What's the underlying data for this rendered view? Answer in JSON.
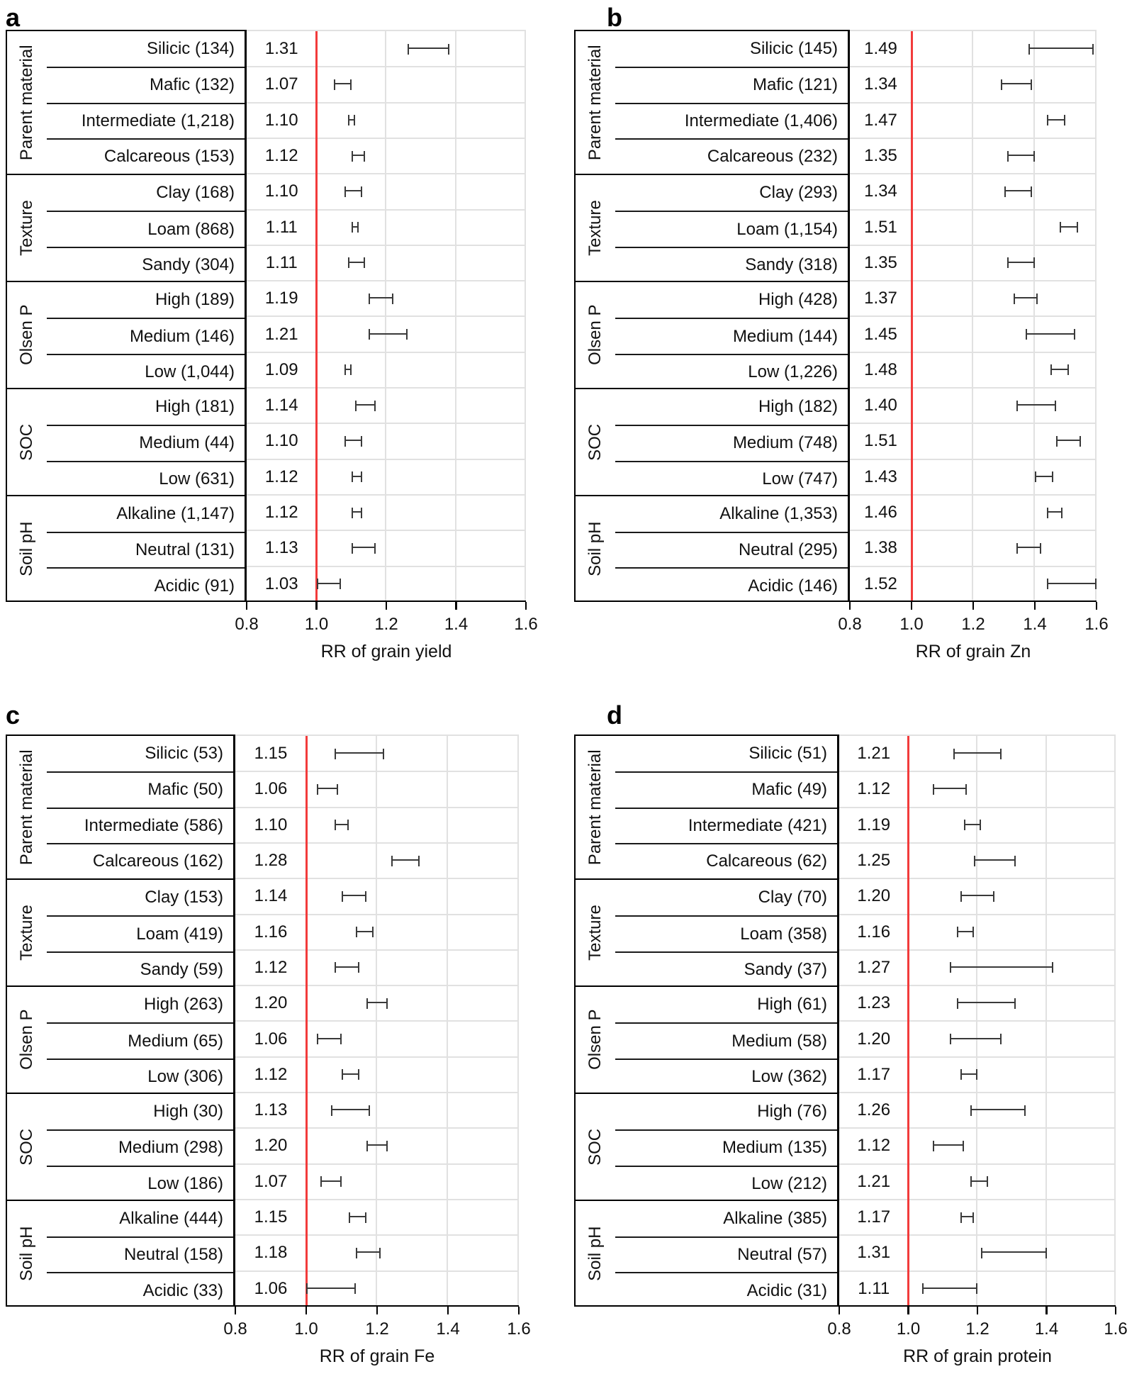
{
  "figure": {
    "panel_letters": [
      "a",
      "b",
      "c",
      "d"
    ],
    "group_names": [
      "Parent material",
      "Texture",
      "Olsen P",
      "SOC",
      "Soil pH"
    ]
  },
  "colors": {
    "reference_line": "#f23b3b",
    "error_bar": "#3a3a3a",
    "gridline": "#e1e1e1",
    "text": "#111111",
    "border": "#000000",
    "background": "#ffffff"
  },
  "chart_data": [
    {
      "type": "forest",
      "panel_label": "a",
      "xlabel": "RR of grain yield",
      "xlim": [
        0.8,
        1.6
      ],
      "xticks": [
        "0.8",
        "1.0",
        "1.2",
        "1.4",
        "1.6"
      ],
      "reference_line": 1.0,
      "grid": true,
      "legend": "none",
      "groups": [
        {
          "name": "Parent material",
          "rows": [
            {
              "label": "Silicic (134)",
              "rr": "1.31",
              "ci": [
                1.26,
                1.38
              ]
            },
            {
              "label": "Mafic (132)",
              "rr": "1.07",
              "ci": [
                1.05,
                1.1
              ]
            },
            {
              "label": "Intermediate (1,218)",
              "rr": "1.10",
              "ci": [
                1.09,
                1.11
              ]
            },
            {
              "label": "Calcareous (153)",
              "rr": "1.12",
              "ci": [
                1.1,
                1.14
              ]
            }
          ]
        },
        {
          "name": "Texture",
          "rows": [
            {
              "label": "Clay (168)",
              "rr": "1.10",
              "ci": [
                1.08,
                1.13
              ]
            },
            {
              "label": "Loam (868)",
              "rr": "1.11",
              "ci": [
                1.1,
                1.12
              ]
            },
            {
              "label": "Sandy (304)",
              "rr": "1.11",
              "ci": [
                1.09,
                1.14
              ]
            }
          ]
        },
        {
          "name": "Olsen P",
          "rows": [
            {
              "label": "High (189)",
              "rr": "1.19",
              "ci": [
                1.15,
                1.22
              ]
            },
            {
              "label": "Medium (146)",
              "rr": "1.21",
              "ci": [
                1.15,
                1.26
              ]
            },
            {
              "label": "Low (1,044)",
              "rr": "1.09",
              "ci": [
                1.08,
                1.1
              ]
            }
          ]
        },
        {
          "name": "SOC",
          "rows": [
            {
              "label": "High (181)",
              "rr": "1.14",
              "ci": [
                1.11,
                1.17
              ]
            },
            {
              "label": "Medium (44)",
              "rr": "1.10",
              "ci": [
                1.08,
                1.13
              ]
            },
            {
              "label": "Low (631)",
              "rr": "1.12",
              "ci": [
                1.1,
                1.13
              ]
            }
          ]
        },
        {
          "name": "Soil pH",
          "rows": [
            {
              "label": "Alkaline (1,147)",
              "rr": "1.12",
              "ci": [
                1.1,
                1.13
              ]
            },
            {
              "label": "Neutral (131)",
              "rr": "1.13",
              "ci": [
                1.1,
                1.17
              ]
            },
            {
              "label": "Acidic (91)",
              "rr": "1.03",
              "ci": [
                1.0,
                1.07
              ]
            }
          ]
        }
      ]
    },
    {
      "type": "forest",
      "panel_label": "b",
      "xlabel": "RR of grain Zn",
      "xlim": [
        0.8,
        1.6
      ],
      "xticks": [
        "0.8",
        "1.0",
        "1.2",
        "1.4",
        "1.6"
      ],
      "reference_line": 1.0,
      "grid": true,
      "legend": "none",
      "groups": [
        {
          "name": "Parent material",
          "rows": [
            {
              "label": "Silicic (145)",
              "rr": "1.49",
              "ci": [
                1.38,
                1.59
              ]
            },
            {
              "label": "Mafic (121)",
              "rr": "1.34",
              "ci": [
                1.29,
                1.39
              ]
            },
            {
              "label": "Intermediate (1,406)",
              "rr": "1.47",
              "ci": [
                1.44,
                1.5
              ]
            },
            {
              "label": "Calcareous (232)",
              "rr": "1.35",
              "ci": [
                1.31,
                1.4
              ]
            }
          ]
        },
        {
          "name": "Texture",
          "rows": [
            {
              "label": "Clay (293)",
              "rr": "1.34",
              "ci": [
                1.3,
                1.39
              ]
            },
            {
              "label": "Loam (1,154)",
              "rr": "1.51",
              "ci": [
                1.48,
                1.54
              ]
            },
            {
              "label": "Sandy (318)",
              "rr": "1.35",
              "ci": [
                1.31,
                1.4
              ]
            }
          ]
        },
        {
          "name": "Olsen P",
          "rows": [
            {
              "label": "High (428)",
              "rr": "1.37",
              "ci": [
                1.33,
                1.41
              ]
            },
            {
              "label": "Medium (144)",
              "rr": "1.45",
              "ci": [
                1.37,
                1.53
              ]
            },
            {
              "label": "Low (1,226)",
              "rr": "1.48",
              "ci": [
                1.45,
                1.51
              ]
            }
          ]
        },
        {
          "name": "SOC",
          "rows": [
            {
              "label": "High (182)",
              "rr": "1.40",
              "ci": [
                1.34,
                1.47
              ]
            },
            {
              "label": "Medium (748)",
              "rr": "1.51",
              "ci": [
                1.47,
                1.55
              ]
            },
            {
              "label": "Low (747)",
              "rr": "1.43",
              "ci": [
                1.4,
                1.46
              ]
            }
          ]
        },
        {
          "name": "Soil pH",
          "rows": [
            {
              "label": "Alkaline (1,353)",
              "rr": "1.46",
              "ci": [
                1.44,
                1.49
              ]
            },
            {
              "label": "Neutral (295)",
              "rr": "1.38",
              "ci": [
                1.34,
                1.42
              ]
            },
            {
              "label": "Acidic (146)",
              "rr": "1.52",
              "ci": [
                1.44,
                1.6
              ]
            }
          ]
        }
      ]
    },
    {
      "type": "forest",
      "panel_label": "c",
      "xlabel": "RR of grain Fe",
      "xlim": [
        0.8,
        1.6
      ],
      "xticks": [
        "0.8",
        "1.0",
        "1.2",
        "1.4",
        "1.6"
      ],
      "reference_line": 1.0,
      "grid": true,
      "legend": "none",
      "groups": [
        {
          "name": "Parent material",
          "rows": [
            {
              "label": "Silicic (53)",
              "rr": "1.15",
              "ci": [
                1.08,
                1.22
              ]
            },
            {
              "label": "Mafic (50)",
              "rr": "1.06",
              "ci": [
                1.03,
                1.09
              ]
            },
            {
              "label": "Intermediate (586)",
              "rr": "1.10",
              "ci": [
                1.08,
                1.12
              ]
            },
            {
              "label": "Calcareous (162)",
              "rr": "1.28",
              "ci": [
                1.24,
                1.32
              ]
            }
          ]
        },
        {
          "name": "Texture",
          "rows": [
            {
              "label": "Clay (153)",
              "rr": "1.14",
              "ci": [
                1.1,
                1.17
              ]
            },
            {
              "label": "Loam (419)",
              "rr": "1.16",
              "ci": [
                1.14,
                1.19
              ]
            },
            {
              "label": "Sandy (59)",
              "rr": "1.12",
              "ci": [
                1.08,
                1.15
              ]
            }
          ]
        },
        {
          "name": "Olsen P",
          "rows": [
            {
              "label": "High (263)",
              "rr": "1.20",
              "ci": [
                1.17,
                1.23
              ]
            },
            {
              "label": "Medium (65)",
              "rr": "1.06",
              "ci": [
                1.03,
                1.1
              ]
            },
            {
              "label": "Low (306)",
              "rr": "1.12",
              "ci": [
                1.1,
                1.15
              ]
            }
          ]
        },
        {
          "name": "SOC",
          "rows": [
            {
              "label": "High (30)",
              "rr": "1.13",
              "ci": [
                1.07,
                1.18
              ]
            },
            {
              "label": "Medium (298)",
              "rr": "1.20",
              "ci": [
                1.17,
                1.23
              ]
            },
            {
              "label": "Low (186)",
              "rr": "1.07",
              "ci": [
                1.04,
                1.1
              ]
            }
          ]
        },
        {
          "name": "Soil pH",
          "rows": [
            {
              "label": "Alkaline (444)",
              "rr": "1.15",
              "ci": [
                1.12,
                1.17
              ]
            },
            {
              "label": "Neutral (158)",
              "rr": "1.18",
              "ci": [
                1.14,
                1.21
              ]
            },
            {
              "label": "Acidic (33)",
              "rr": "1.06",
              "ci": [
                1.0,
                1.14
              ]
            }
          ]
        }
      ]
    },
    {
      "type": "forest",
      "panel_label": "d",
      "xlabel": "RR of grain protein",
      "xlim": [
        0.8,
        1.6
      ],
      "xticks": [
        "0.8",
        "1.0",
        "1.2",
        "1.4",
        "1.6"
      ],
      "reference_line": 1.0,
      "grid": true,
      "legend": "none",
      "groups": [
        {
          "name": "Parent material",
          "rows": [
            {
              "label": "Silicic (51)",
              "rr": "1.21",
              "ci": [
                1.13,
                1.27
              ]
            },
            {
              "label": "Mafic (49)",
              "rr": "1.12",
              "ci": [
                1.07,
                1.17
              ]
            },
            {
              "label": "Intermediate (421)",
              "rr": "1.19",
              "ci": [
                1.16,
                1.21
              ]
            },
            {
              "label": "Calcareous (62)",
              "rr": "1.25",
              "ci": [
                1.19,
                1.31
              ]
            }
          ]
        },
        {
          "name": "Texture",
          "rows": [
            {
              "label": "Clay (70)",
              "rr": "1.20",
              "ci": [
                1.15,
                1.25
              ]
            },
            {
              "label": "Loam (358)",
              "rr": "1.16",
              "ci": [
                1.14,
                1.19
              ]
            },
            {
              "label": "Sandy (37)",
              "rr": "1.27",
              "ci": [
                1.12,
                1.42
              ]
            }
          ]
        },
        {
          "name": "Olsen P",
          "rows": [
            {
              "label": "High (61)",
              "rr": "1.23",
              "ci": [
                1.14,
                1.31
              ]
            },
            {
              "label": "Medium (58)",
              "rr": "1.20",
              "ci": [
                1.12,
                1.27
              ]
            },
            {
              "label": "Low (362)",
              "rr": "1.17",
              "ci": [
                1.15,
                1.2
              ]
            }
          ]
        },
        {
          "name": "SOC",
          "rows": [
            {
              "label": "High (76)",
              "rr": "1.26",
              "ci": [
                1.18,
                1.34
              ]
            },
            {
              "label": "Medium (135)",
              "rr": "1.12",
              "ci": [
                1.07,
                1.16
              ]
            },
            {
              "label": "Low (212)",
              "rr": "1.21",
              "ci": [
                1.18,
                1.23
              ]
            }
          ]
        },
        {
          "name": "Soil pH",
          "rows": [
            {
              "label": "Alkaline (385)",
              "rr": "1.17",
              "ci": [
                1.15,
                1.19
              ]
            },
            {
              "label": "Neutral (57)",
              "rr": "1.31",
              "ci": [
                1.21,
                1.4
              ]
            },
            {
              "label": "Acidic (31)",
              "rr": "1.11",
              "ci": [
                1.04,
                1.2
              ]
            }
          ]
        }
      ]
    }
  ]
}
